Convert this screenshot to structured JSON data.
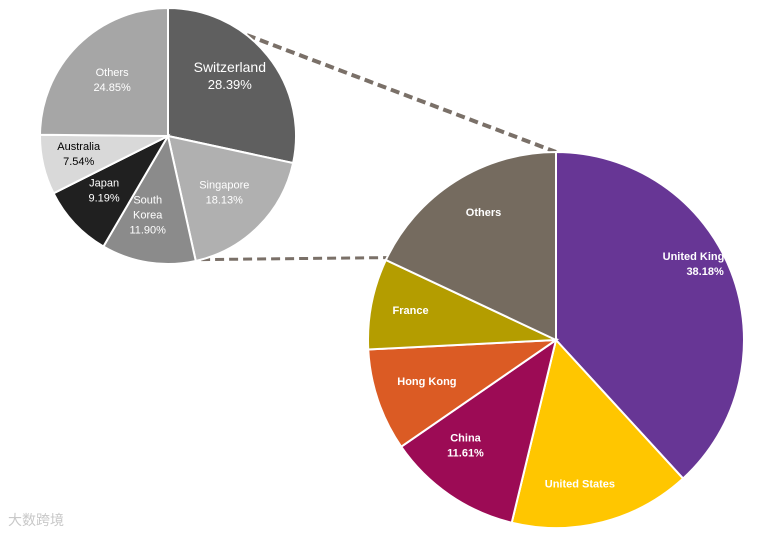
{
  "chart_data": [
    {
      "type": "pie",
      "slices": [
        {
          "label": "Switzerland",
          "value": 28.39,
          "display": "28.39%",
          "color": "#5f5f5f",
          "text_color": "#ffffff"
        },
        {
          "label": "Singapore",
          "value": 18.13,
          "display": "18.13%",
          "color": "#b0b0b0",
          "text_color": "#ffffff"
        },
        {
          "label": "South Korea",
          "label_lines": [
            "South",
            "Korea"
          ],
          "value": 11.9,
          "display": "11.90%",
          "color": "#8b8b8b",
          "text_color": "#ffffff"
        },
        {
          "label": "Japan",
          "value": 9.19,
          "display": "9.19%",
          "color": "#202020",
          "text_color": "#ffffff"
        },
        {
          "label": "Australia",
          "value": 7.54,
          "display": "7.54%",
          "color": "#d9d9d9",
          "text_color": "#000000"
        },
        {
          "label": "Others",
          "value": 24.85,
          "display": "24.85%",
          "color": "#a6a6a6",
          "text_color": "#ffffff"
        }
      ]
    },
    {
      "type": "pie",
      "slices": [
        {
          "label": "United Kingdom",
          "value": 38.18,
          "display": "38.18%",
          "color": "#673695",
          "text_color": "#ffffff"
        },
        {
          "label": "United States",
          "value": 15.6,
          "display": "",
          "color": "#ffc600",
          "text_color": "#ffffff"
        },
        {
          "label": "China",
          "value": 11.61,
          "display": "11.61%",
          "color": "#9c0b55",
          "text_color": "#ffffff"
        },
        {
          "label": "Hong Kong",
          "value": 8.8,
          "display": "",
          "color": "#db5b24",
          "text_color": "#ffffff"
        },
        {
          "label": "France",
          "value": 7.8,
          "display": "",
          "color": "#b49d00",
          "text_color": "#ffffff"
        },
        {
          "label": "Others",
          "value": 18.0,
          "display": "",
          "color": "#756b5f",
          "text_color": "#ffffff"
        }
      ]
    }
  ],
  "watermark": "大数跨境"
}
